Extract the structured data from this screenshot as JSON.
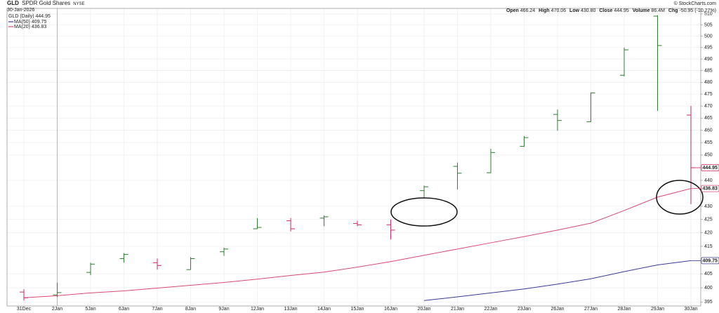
{
  "chart_data": {
    "type": "ohlc",
    "symbol": "GLD",
    "name": "SPDR Gold Shares",
    "exchange": "NYSE",
    "date": "30-Jan-2026",
    "credit": "© StockCharts.com",
    "quote": {
      "labels": [
        "Open",
        "High",
        "Low",
        "Close",
        "Volume",
        "Chg"
      ],
      "low": "430.80",
      "volume": "86.4M",
      "change": "-50.95 (-10.27%)"
    },
    "legend_name": "GLD (Daily)",
    "categories": [
      "31Dec",
      "2Jan",
      "5Jan",
      "6Jan",
      "7Jan",
      "8Jan",
      "9Jan",
      "12Jan",
      "13Jan",
      "14Jan",
      "15Jan",
      "16Jan",
      "20Jan",
      "21Jan",
      "22Jan",
      "23Jan",
      "26Jan",
      "27Jan",
      "28Jan",
      "29Jan",
      "30Jan"
    ],
    "ohlc": {
      "open": [
        398.5,
        397.5,
        405.5,
        410.5,
        409,
        406.5,
        413,
        421.5,
        424.5,
        425.5,
        423.5,
        423,
        436,
        445.5,
        443,
        453.5,
        466.5,
        463.5,
        483,
        509,
        466.24
      ],
      "high": [
        399.5,
        401.8,
        409,
        412.5,
        410.5,
        411,
        414.5,
        425.5,
        425.5,
        426.5,
        424.5,
        425,
        438,
        447,
        452.5,
        457.6,
        468.5,
        475.7,
        495,
        509.4,
        470.06
      ],
      "low": [
        395.5,
        396.8,
        404.5,
        409,
        406.5,
        406.5,
        411.5,
        421.5,
        420.5,
        422.5,
        422.5,
        417.5,
        433,
        436.5,
        442.8,
        453.3,
        459.8,
        463.4,
        482.5,
        468,
        430.8
      ],
      "close": [
        396.5,
        398.3,
        408.5,
        412,
        408,
        410.5,
        414,
        422,
        421.5,
        426,
        423,
        421,
        437.5,
        442.8,
        451,
        457,
        464,
        475.5,
        494,
        495.9,
        444.95
      ]
    },
    "up_color": "#2f7d32",
    "down_color": "#d2275a",
    "series": [
      {
        "name": "MA(50)",
        "color": "#3a3a96",
        "values": [
          null,
          null,
          null,
          null,
          null,
          null,
          null,
          null,
          null,
          null,
          null,
          null,
          395.5,
          396.8,
          398.2,
          399.6,
          401.3,
          403.2,
          405.8,
          408.2,
          409.75
        ]
      },
      {
        "name": "MA(20)",
        "color": "#d84a72",
        "values": [
          396.5,
          397.2,
          398.2,
          398.9,
          399.9,
          400.9,
          401.9,
          403.1,
          404.4,
          405.6,
          407.4,
          409.4,
          411.7,
          414,
          416.3,
          418.6,
          421,
          423.6,
          428.4,
          433.5,
          436.83
        ]
      }
    ],
    "ylim": [
      393.6,
      512.5
    ],
    "log_scale": true,
    "yticks": [
      395,
      400,
      405,
      415,
      420,
      425,
      430,
      440,
      450,
      455,
      460,
      465,
      470,
      475,
      480,
      485,
      490,
      495,
      500,
      505,
      510
    ],
    "grid": true
  }
}
